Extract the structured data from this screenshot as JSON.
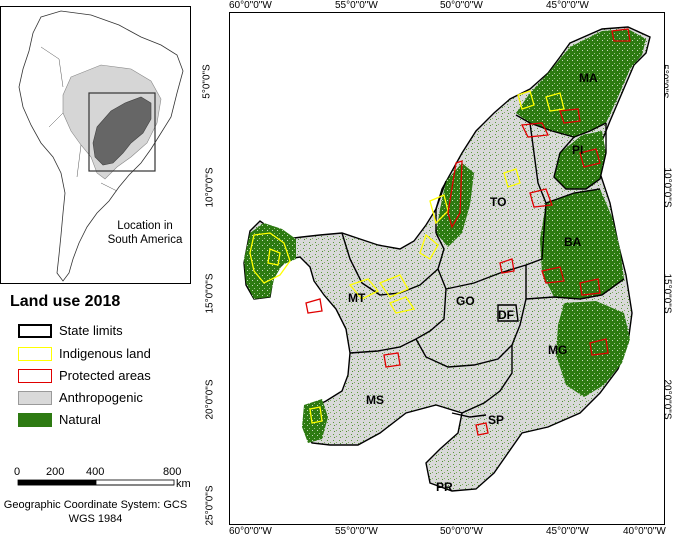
{
  "inset": {
    "label": "Location in South America"
  },
  "legend": {
    "title": "Land use 2018",
    "items": [
      {
        "label": "State limits",
        "fill": "#ffffff",
        "stroke": "#000000",
        "stroke_width": "2px"
      },
      {
        "label": "Indigenous land",
        "fill": "#ffffff",
        "stroke": "#ffff00",
        "stroke_width": "1.5px"
      },
      {
        "label": "Protected areas",
        "fill": "#ffffff",
        "stroke": "#e00000",
        "stroke_width": "1.5px"
      },
      {
        "label": "Anthropogenic",
        "fill": "#d9d9d9",
        "stroke": "#9a9a9a",
        "stroke_width": "1px"
      },
      {
        "label": "Natural",
        "fill": "#2d7a12",
        "stroke": "#2d7a12",
        "stroke_width": "1px"
      }
    ]
  },
  "scale": {
    "ticks": [
      "0",
      "200",
      "400",
      "800"
    ],
    "unit": "km"
  },
  "gcs_text": "Geographic Coordinate System: GCS WGS 1984",
  "coords": {
    "top": [
      "60°0\"0\"W",
      "55°0\"0\"W",
      "50°0\"0\"W",
      "45°0\"0\"W"
    ],
    "bottom": [
      "60°0\"0\"W",
      "55°0\"0\"W",
      "50°0\"0\"W",
      "45°0\"0\"W",
      "40°0\"0\"W"
    ],
    "left": [
      "5°0\"0\"S",
      "10°0\"0\"S",
      "15°0\"0\"S",
      "20°0\"0\"S",
      "25°0\"0\"S"
    ],
    "right": [
      "5°0\"0\"S",
      "10°0\"0\"S",
      "15°0\"0\"S",
      "20°0\"0\"S"
    ]
  },
  "states": [
    "MA",
    "PI",
    "TO",
    "BA",
    "MT",
    "GO",
    "DF",
    "MG",
    "MS",
    "SP",
    "PR"
  ],
  "colors": {
    "natural": "#2d7a12",
    "anthropogenic": "#d9d9d9",
    "indigenous": "#ffff00",
    "protected": "#e00000"
  }
}
